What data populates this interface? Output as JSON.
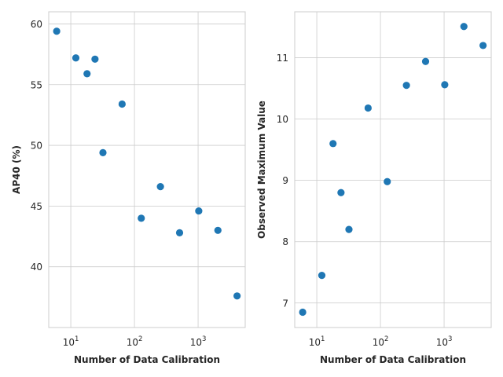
{
  "chart_data": [
    {
      "type": "scatter",
      "title": "",
      "xlabel": "Number of Data Calibration",
      "ylabel": "AP40 (%)",
      "xscale": "log",
      "xlim": [
        4.5,
        5500
      ],
      "ylim": [
        35.0,
        61.0
      ],
      "grid": true,
      "x_ticks": [
        {
          "value": 10,
          "base": "10",
          "exp": "1"
        },
        {
          "value": 100,
          "base": "10",
          "exp": "2"
        },
        {
          "value": 1000,
          "base": "10",
          "exp": "3"
        }
      ],
      "y_ticks": [
        {
          "value": 40,
          "label": "40"
        },
        {
          "value": 45,
          "label": "45"
        },
        {
          "value": 50,
          "label": "50"
        },
        {
          "value": 55,
          "label": "55"
        },
        {
          "value": 60,
          "label": "60"
        }
      ],
      "color": "#1f77b4",
      "x": [
        6,
        12,
        18,
        24,
        32,
        64,
        128,
        256,
        512,
        1024,
        2048,
        4096
      ],
      "y": [
        59.4,
        57.2,
        55.9,
        57.1,
        49.4,
        53.4,
        44.0,
        46.6,
        42.8,
        44.6,
        43.0,
        37.6
      ]
    },
    {
      "type": "scatter",
      "title": "",
      "xlabel": "Number of Data Calibration",
      "ylabel": "Observed Maximum Value",
      "xscale": "log",
      "xlim": [
        4.5,
        5500
      ],
      "ylim": [
        6.6,
        11.75
      ],
      "grid": true,
      "x_ticks": [
        {
          "value": 10,
          "base": "10",
          "exp": "1"
        },
        {
          "value": 100,
          "base": "10",
          "exp": "2"
        },
        {
          "value": 1000,
          "base": "10",
          "exp": "3"
        }
      ],
      "y_ticks": [
        {
          "value": 7,
          "label": "7"
        },
        {
          "value": 8,
          "label": "8"
        },
        {
          "value": 9,
          "label": "9"
        },
        {
          "value": 10,
          "label": "10"
        },
        {
          "value": 11,
          "label": "11"
        }
      ],
      "color": "#1f77b4",
      "x": [
        6,
        12,
        18,
        24,
        32,
        64,
        128,
        256,
        512,
        1024,
        2048,
        4096
      ],
      "y": [
        6.85,
        7.45,
        9.6,
        8.8,
        8.2,
        10.18,
        8.98,
        10.55,
        10.94,
        10.56,
        11.51,
        11.2
      ]
    }
  ]
}
